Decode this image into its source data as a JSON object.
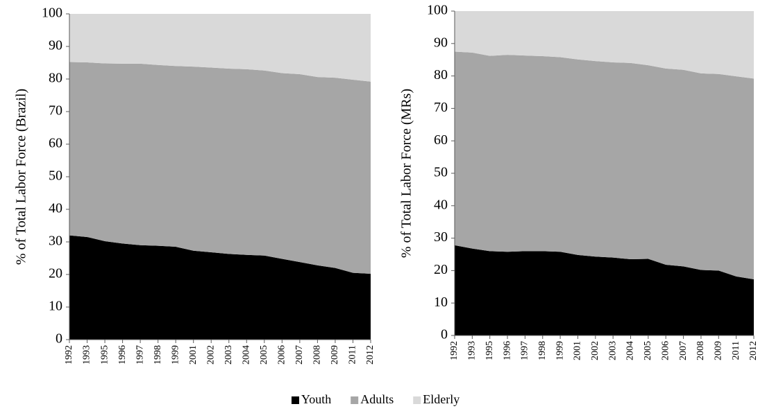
{
  "chart_data": [
    {
      "type": "stacked-area",
      "ylabel": "% of Total Labor Force (Brazil)",
      "categories": [
        "1992",
        "1993",
        "1995",
        "1996",
        "1997",
        "1998",
        "1999",
        "2001",
        "2002",
        "2003",
        "2004",
        "2005",
        "2006",
        "2007",
        "2008",
        "2009",
        "2011",
        "2012"
      ],
      "series": [
        {
          "name": "Youth",
          "color": "#000000",
          "values": [
            32,
            31.5,
            30.2,
            29.5,
            29,
            28.8,
            28.5,
            27.3,
            26.8,
            26.3,
            26,
            25.8,
            24.8,
            23.8,
            22.8,
            22,
            20.5,
            20.2
          ]
        },
        {
          "name": "Adults",
          "color": "#a6a6a6",
          "values": [
            53.2,
            53.6,
            54.6,
            55.2,
            55.7,
            55.5,
            55.5,
            56.5,
            56.7,
            56.9,
            57,
            56.8,
            57,
            57.7,
            57.8,
            58.4,
            59.3,
            59
          ]
        },
        {
          "name": "Elderly",
          "color": "#d9d9d9",
          "values": [
            14.8,
            14.9,
            15.2,
            15.3,
            15.3,
            15.7,
            16,
            16.2,
            16.5,
            16.8,
            17,
            17.4,
            18.2,
            18.5,
            19.4,
            19.6,
            20.2,
            20.8
          ]
        }
      ],
      "ylim": [
        0,
        100
      ],
      "yticks": [
        0,
        10,
        20,
        30,
        40,
        50,
        60,
        70,
        80,
        90,
        100
      ]
    },
    {
      "type": "stacked-area",
      "ylabel": "% of Total Labor Force (MRs)",
      "categories": [
        "1992",
        "1993",
        "1995",
        "1996",
        "1997",
        "1998",
        "1999",
        "2001",
        "2002",
        "2003",
        "2004",
        "2005",
        "2006",
        "2007",
        "2008",
        "2009",
        "2011",
        "2012"
      ],
      "series": [
        {
          "name": "Youth",
          "color": "#000000",
          "values": [
            27.8,
            26.8,
            26,
            25.8,
            26,
            26,
            25.8,
            24.8,
            24.3,
            24,
            23.5,
            23.6,
            21.8,
            21.3,
            20.2,
            20,
            18.2,
            17.3
          ]
        },
        {
          "name": "Adults",
          "color": "#a6a6a6",
          "values": [
            59.7,
            60.4,
            60.2,
            60.7,
            60.3,
            60.1,
            60,
            60.3,
            60.3,
            60.2,
            60.5,
            59.7,
            60.5,
            60.6,
            60.6,
            60.6,
            61.7,
            61.9
          ]
        },
        {
          "name": "Elderly",
          "color": "#d9d9d9",
          "values": [
            12.5,
            12.8,
            13.8,
            13.5,
            13.7,
            13.9,
            14.2,
            14.9,
            15.4,
            15.8,
            16,
            16.7,
            17.7,
            18.1,
            19.2,
            19.4,
            20.1,
            20.8
          ]
        }
      ],
      "ylim": [
        0,
        100
      ],
      "yticks": [
        0,
        10,
        20,
        30,
        40,
        50,
        60,
        70,
        80,
        90,
        100
      ]
    }
  ]
}
